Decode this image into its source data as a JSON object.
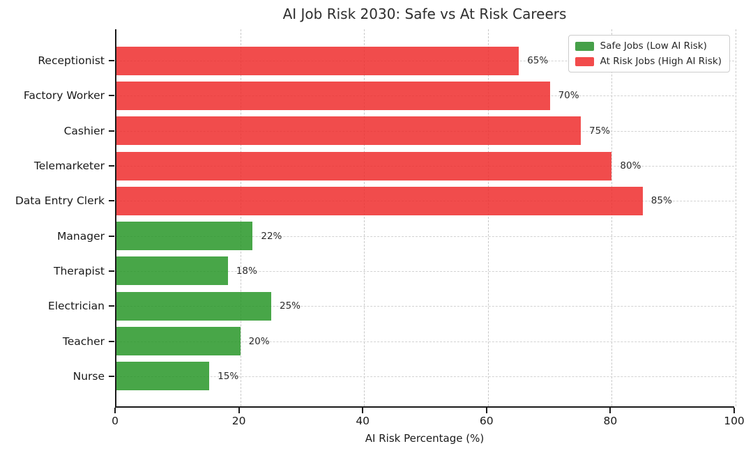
{
  "title": "AI Job Risk 2030: Safe vs At Risk Careers",
  "chart_data": {
    "type": "bar",
    "orientation": "horizontal",
    "title": "AI Job Risk 2030: Safe vs At Risk Careers",
    "xlabel": "AI Risk Percentage (%)",
    "ylabel": "",
    "xlim": [
      0,
      100
    ],
    "xticks": [
      0,
      20,
      40,
      60,
      80,
      100
    ],
    "grid": true,
    "legend_position": "upper right",
    "categories": [
      "Receptionist",
      "Factory Worker",
      "Cashier",
      "Telemarketer",
      "Data Entry Clerk",
      "Manager",
      "Therapist",
      "Electrician",
      "Teacher",
      "Nurse"
    ],
    "values": [
      65,
      70,
      75,
      80,
      85,
      22,
      18,
      25,
      20,
      15
    ],
    "value_labels": [
      "65%",
      "70%",
      "75%",
      "80%",
      "85%",
      "22%",
      "18%",
      "25%",
      "20%",
      "15%"
    ],
    "groups": [
      "at_risk",
      "at_risk",
      "at_risk",
      "at_risk",
      "at_risk",
      "safe",
      "safe",
      "safe",
      "safe",
      "safe"
    ],
    "colors": {
      "safe_fill": "rgba(40,150,40,0.85)",
      "at_risk_fill": "rgba(238,45,45,0.85)",
      "safe_solid": "#46a049",
      "at_risk_solid": "#f24b4b",
      "grid": "#c9c9c9",
      "axis": "#1a1a1a"
    },
    "legend": [
      {
        "key": "safe",
        "label": "Safe Jobs (Low AI Risk)",
        "color": "#46a049"
      },
      {
        "key": "at_risk",
        "label": "At Risk Jobs (High AI Risk)",
        "color": "#f24b4b"
      }
    ]
  }
}
